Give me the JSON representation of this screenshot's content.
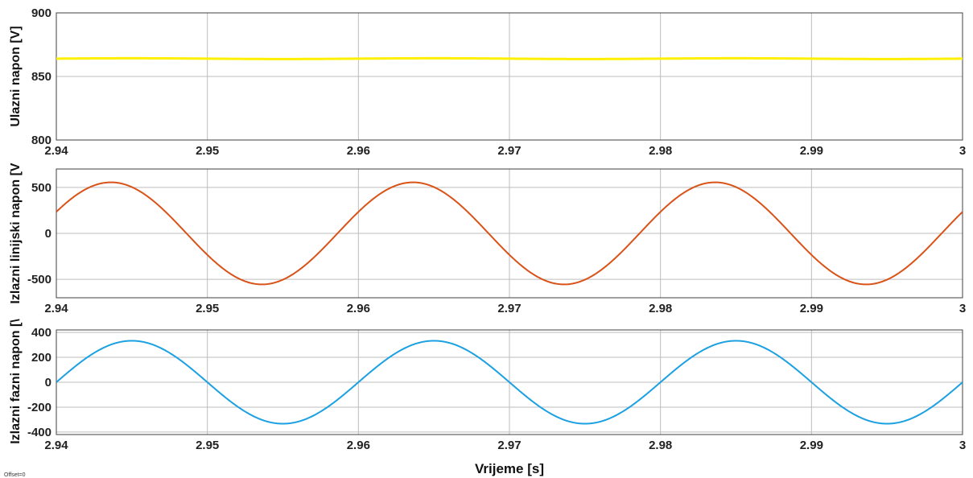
{
  "xlabel": "Vrijeme [s]",
  "footnote": "Offset=0",
  "chart_data": [
    {
      "type": "line",
      "ylabel": "Ulazni napon [V]",
      "xlim": [
        2.94,
        3
      ],
      "xticks": [
        2.94,
        2.95,
        2.96,
        2.97,
        2.98,
        2.99,
        3
      ],
      "xtick_labels": [
        "2.94",
        "2.95",
        "2.96",
        "2.97",
        "2.98",
        "2.99",
        "3"
      ],
      "ylim": [
        800,
        900
      ],
      "yticks": [
        800,
        850,
        900
      ],
      "ytick_labels": [
        "800",
        "850",
        "900"
      ],
      "grid": true,
      "series": [
        {
          "color": "#FFF000",
          "kind": "dc",
          "value": 864,
          "ripple": 0.3,
          "frequency_hz": 50,
          "phase_rad": 0
        }
      ]
    },
    {
      "type": "line",
      "ylabel": "Izlazni linijski napon [V",
      "xlim": [
        2.94,
        3
      ],
      "xticks": [
        2.94,
        2.95,
        2.96,
        2.97,
        2.98,
        2.99,
        3
      ],
      "xtick_labels": [
        "2.94",
        "2.95",
        "2.96",
        "2.97",
        "2.98",
        "2.99",
        "3"
      ],
      "ylim": [
        -700,
        700
      ],
      "yticks": [
        -500,
        0,
        500
      ],
      "ytick_labels": [
        "-500",
        "0",
        "500"
      ],
      "grid": true,
      "series": [
        {
          "color": "#D95319",
          "kind": "sine",
          "amplitude": 555,
          "frequency_hz": 50,
          "phase_rad": 0.4346,
          "offset": 0
        }
      ]
    },
    {
      "type": "line",
      "ylabel": "Izlazni fazni napon [\\",
      "xlim": [
        2.94,
        3
      ],
      "xticks": [
        2.94,
        2.95,
        2.96,
        2.97,
        2.98,
        2.99,
        3
      ],
      "xtick_labels": [
        "2.94",
        "2.95",
        "2.96",
        "2.97",
        "2.98",
        "2.99",
        "3"
      ],
      "ylim": [
        -420,
        420
      ],
      "yticks": [
        -400,
        -200,
        0,
        200,
        400
      ],
      "ytick_labels": [
        "-400",
        "-200",
        "0",
        "200",
        "400"
      ],
      "grid": true,
      "series": [
        {
          "color": "#1BA1E2",
          "kind": "sine",
          "amplitude": 333,
          "frequency_hz": 50,
          "phase_rad": 0,
          "offset": 0
        }
      ]
    }
  ]
}
